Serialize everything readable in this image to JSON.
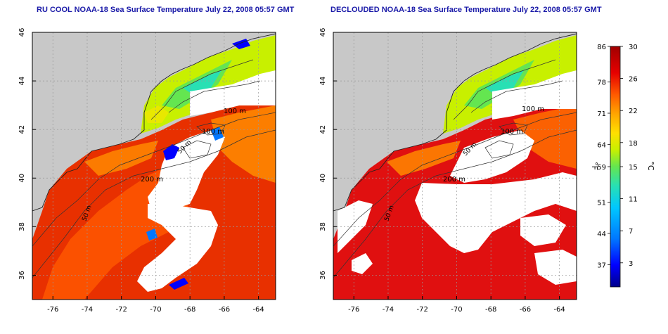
{
  "panels": [
    {
      "title": "RU COOL NOAA-18 Sea Surface Temperature July 22, 2008 05:57 GMT",
      "contour_labels": [
        "100 m",
        "100 m",
        "50 m",
        "200 m",
        "50 m"
      ]
    },
    {
      "title": "DECLOUDED NOAA-18 Sea Surface Temperature July 22, 2008 05:57 GMT",
      "contour_labels": [
        "100 m",
        "100 m",
        "50 m",
        "200 m",
        "50 m"
      ]
    }
  ],
  "axes": {
    "x_ticks": [
      "-76",
      "-74",
      "-72",
      "-70",
      "-68",
      "-66",
      "-64"
    ],
    "y_ticks": [
      "46",
      "44",
      "42",
      "40",
      "38",
      "36"
    ],
    "x_values": [
      -76,
      -74,
      -72,
      -70,
      -68,
      -66,
      -64
    ],
    "y_values": [
      46,
      44,
      42,
      40,
      38,
      36
    ],
    "lon_range": [
      -77.2,
      -63
    ],
    "lat_range": [
      35,
      46
    ]
  },
  "colorbar": {
    "fahrenheit_ticks": [
      "86",
      "78",
      "71",
      "64",
      "59",
      "51",
      "44",
      "37"
    ],
    "celsius_ticks": [
      "30",
      "26",
      "22",
      "18",
      "15",
      "11",
      "7",
      "3"
    ],
    "fahrenheit_values": [
      86,
      78,
      71,
      64,
      59,
      51,
      44,
      37
    ],
    "celsius_values": [
      30,
      26,
      22,
      18,
      15,
      11,
      7,
      3
    ],
    "f_label": "°F",
    "c_label": "°C",
    "c_range": [
      0,
      30
    ],
    "colors": [
      "#00008b",
      "#0000ff",
      "#0077ff",
      "#00c8ff",
      "#28e0b4",
      "#64e650",
      "#c8f000",
      "#ffe000",
      "#ffa500",
      "#ff5a00",
      "#e60000",
      "#a00000"
    ]
  },
  "map_colors": {
    "land": "#c8c8c8",
    "cloud": "#ffffff",
    "contour": "#333333"
  }
}
